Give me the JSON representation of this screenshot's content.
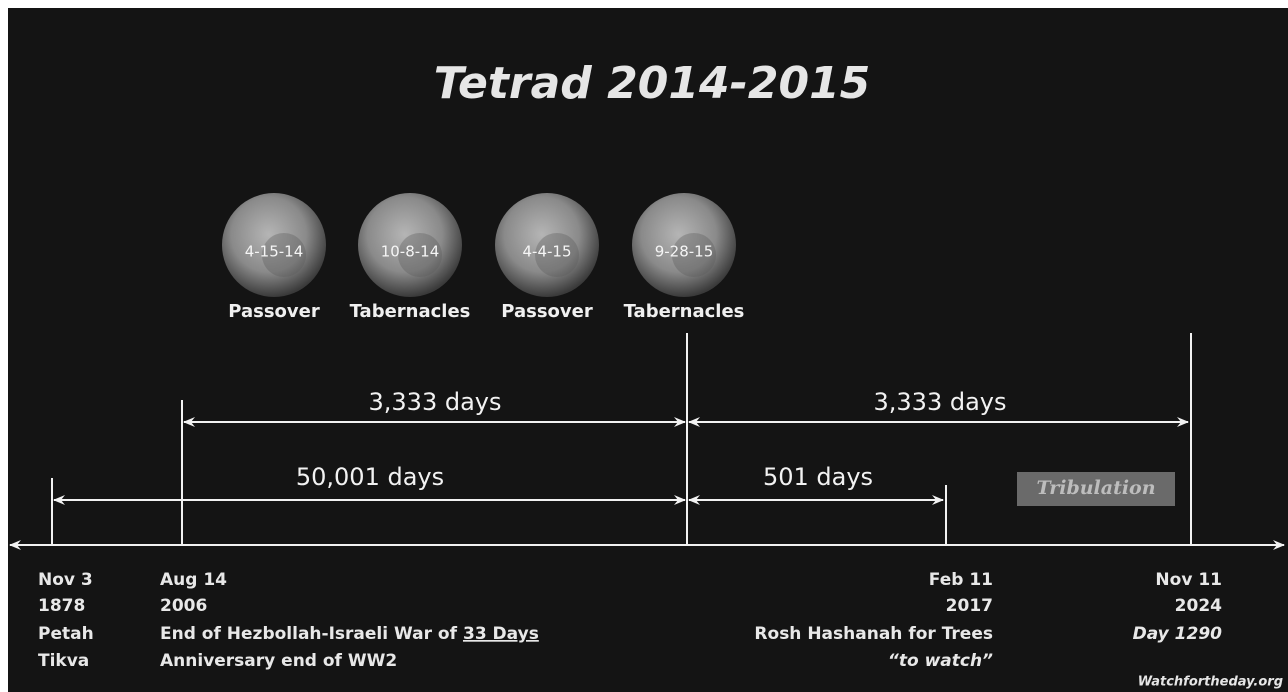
{
  "title": "Tetrad   2014-2015",
  "moons": [
    {
      "date": "4-15-14",
      "label": "Passover"
    },
    {
      "date": "10-8-14",
      "label": "Tabernacles"
    },
    {
      "date": "4-4-15",
      "label": "Passover"
    },
    {
      "date": "9-28-15",
      "label": "Tabernacles"
    }
  ],
  "spans": [
    "3,333 days",
    "3,333 days",
    "50,001 days",
    "501 days"
  ],
  "tribulation": "Tribulation",
  "columns": [
    {
      "lines": [
        "Nov 3",
        "1878",
        "Petah",
        "Tikva"
      ]
    },
    {
      "lines": [
        "Aug 14",
        "2006",
        {
          "text": "End of Hezbollah-Israeli War of",
          "underlined": "33 Days"
        },
        "Anniversary end of WW2"
      ]
    },
    {
      "lines": [
        "Feb 11",
        "2017",
        "Rosh Hashanah for Trees",
        "“to watch”"
      ]
    },
    {
      "lines": [
        "Nov 11",
        "2024",
        "Day 1290"
      ]
    }
  ],
  "credit": "Watchfortheday.org"
}
